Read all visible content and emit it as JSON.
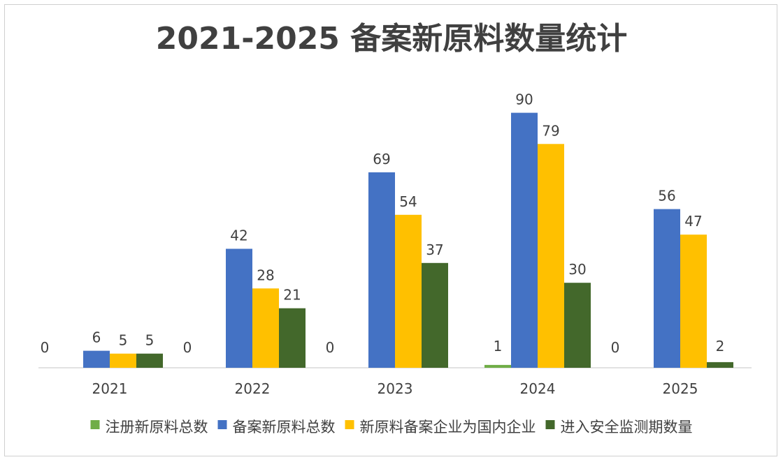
{
  "chart_data": {
    "type": "bar",
    "title": "2021-2025 备案新原料数量统计",
    "xlabel": "",
    "ylabel": "",
    "categories": [
      "2021",
      "2022",
      "2023",
      "2024",
      "2025"
    ],
    "ylim": [
      0,
      100
    ],
    "grid": false,
    "legend_position": "bottom",
    "series": [
      {
        "name": "注册新原料总数",
        "color": "#70ad47",
        "values": [
          0,
          0,
          0,
          1,
          0
        ]
      },
      {
        "name": "备案新原料总数",
        "color": "#4472c4",
        "values": [
          6,
          42,
          69,
          90,
          56
        ]
      },
      {
        "name": "新原料备案企业为国内企业",
        "color": "#ffc000",
        "values": [
          5,
          28,
          54,
          79,
          47
        ]
      },
      {
        "name": "进入安全监测期数量",
        "color": "#43682b",
        "values": [
          5,
          21,
          37,
          30,
          2
        ]
      }
    ]
  }
}
